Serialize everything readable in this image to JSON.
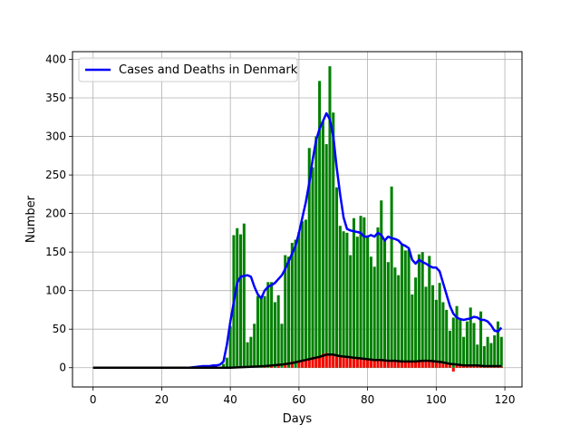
{
  "chart_data": {
    "type": "bar",
    "xlabel": "Days",
    "ylabel": "Number",
    "xlim": [
      -6,
      125
    ],
    "ylim": [
      -25,
      410
    ],
    "xticks": [
      0,
      20,
      40,
      60,
      80,
      100,
      120
    ],
    "yticks": [
      0,
      50,
      100,
      150,
      200,
      250,
      300,
      350,
      400
    ],
    "grid": true,
    "legend": {
      "placement": "top-left",
      "entries": [
        "Cases and Deaths in Denmark"
      ]
    },
    "colors": {
      "cases_bars": "#008000",
      "deaths_bars": "#ff0000",
      "cases_line": "#0000ff",
      "deaths_line": "#000000"
    },
    "series": [
      {
        "name": "Cases and Deaths in Denmark",
        "kind": "line",
        "x": [
          0,
          5,
          10,
          15,
          20,
          25,
          28,
          30,
          32,
          34,
          35,
          36,
          37,
          38,
          39,
          40,
          41,
          42,
          43,
          44,
          45,
          46,
          47,
          48,
          49,
          50,
          51,
          52,
          53,
          54,
          55,
          56,
          57,
          58,
          59,
          60,
          61,
          62,
          63,
          64,
          65,
          66,
          67,
          68,
          69,
          70,
          71,
          72,
          73,
          74,
          75,
          76,
          77,
          78,
          79,
          80,
          81,
          82,
          83,
          84,
          85,
          86,
          87,
          88,
          89,
          90,
          91,
          92,
          93,
          94,
          95,
          96,
          97,
          98,
          99,
          100,
          101,
          102,
          103,
          104,
          105,
          106,
          107,
          108,
          109,
          110,
          111,
          112,
          113,
          114,
          115,
          116,
          117,
          118,
          119
        ],
        "values": [
          0,
          0,
          0,
          0,
          0,
          0,
          0,
          1,
          2,
          2,
          3,
          3,
          4,
          8,
          30,
          60,
          85,
          110,
          118,
          119,
          120,
          118,
          105,
          95,
          90,
          100,
          105,
          107,
          110,
          115,
          120,
          128,
          138,
          148,
          158,
          175,
          195,
          215,
          240,
          270,
          295,
          310,
          320,
          330,
          322,
          300,
          260,
          225,
          195,
          180,
          178,
          177,
          176,
          175,
          170,
          170,
          172,
          170,
          175,
          172,
          165,
          170,
          168,
          167,
          165,
          160,
          158,
          155,
          140,
          135,
          140,
          137,
          135,
          132,
          130,
          130,
          125,
          110,
          95,
          80,
          70,
          65,
          63,
          62,
          63,
          64,
          66,
          65,
          62,
          62,
          60,
          55,
          48,
          47,
          52
        ]
      },
      {
        "name": "",
        "kind": "line",
        "x": [
          0,
          10,
          20,
          30,
          35,
          40,
          45,
          50,
          55,
          58,
          60,
          62,
          64,
          66,
          68,
          70,
          72,
          74,
          76,
          78,
          80,
          82,
          84,
          86,
          88,
          90,
          92,
          94,
          96,
          98,
          100,
          102,
          104,
          106,
          108,
          110,
          112,
          114,
          116,
          118,
          119
        ],
        "values": [
          0,
          0,
          0,
          0,
          0,
          0,
          1,
          2,
          4,
          6,
          8,
          10,
          12,
          14,
          17,
          17,
          15,
          14,
          13,
          12,
          11,
          10,
          10,
          9,
          9,
          8,
          8,
          8,
          9,
          9,
          8,
          7,
          5,
          4,
          3,
          3,
          3,
          2,
          2,
          2,
          2
        ]
      },
      {
        "name": "",
        "kind": "bar",
        "x": [
          38,
          39,
          40,
          41,
          42,
          43,
          44,
          45,
          46,
          47,
          48,
          49,
          50,
          51,
          52,
          53,
          54,
          55,
          56,
          57,
          58,
          59,
          60,
          61,
          62,
          63,
          64,
          65,
          66,
          67,
          68,
          69,
          70,
          71,
          72,
          73,
          74,
          75,
          76,
          77,
          78,
          79,
          80,
          81,
          82,
          83,
          84,
          85,
          86,
          87,
          88,
          89,
          90,
          91,
          92,
          93,
          94,
          95,
          96,
          97,
          98,
          99,
          100,
          101,
          102,
          103,
          104,
          105,
          106,
          107,
          108,
          109,
          110,
          111,
          112,
          113,
          114,
          115,
          116,
          117,
          118,
          119
        ],
        "values": [
          5,
          13,
          54,
          172,
          181,
          173,
          187,
          33,
          40,
          57,
          93,
          91,
          93,
          111,
          111,
          85,
          94,
          57,
          146,
          144,
          162,
          166,
          176,
          190,
          192,
          285,
          260,
          300,
          372,
          320,
          290,
          391,
          331,
          234,
          184,
          177,
          175,
          146,
          194,
          170,
          197,
          195,
          169,
          144,
          131,
          182,
          217,
          165,
          137,
          235,
          130,
          120,
          160,
          152,
          153,
          95,
          117,
          147,
          150,
          105,
          145,
          107,
          88,
          110,
          85,
          75,
          48,
          65,
          80,
          62,
          40,
          60,
          78,
          58,
          30,
          73,
          28,
          40,
          32,
          42,
          60,
          40
        ]
      },
      {
        "name": "",
        "kind": "bar",
        "x": [
          50,
          52,
          54,
          56,
          58,
          60,
          61,
          62,
          63,
          64,
          65,
          66,
          67,
          68,
          69,
          70,
          71,
          72,
          73,
          74,
          75,
          76,
          77,
          78,
          79,
          80,
          81,
          82,
          83,
          84,
          85,
          86,
          87,
          88,
          89,
          90,
          91,
          92,
          93,
          94,
          95,
          96,
          97,
          98,
          99,
          100,
          101,
          102,
          103,
          104,
          105,
          106,
          107,
          108,
          109,
          110,
          111,
          112,
          113,
          114,
          115,
          116,
          117,
          118,
          119
        ],
        "values": [
          2,
          3,
          4,
          6,
          8,
          9,
          10,
          11,
          12,
          14,
          13,
          15,
          18,
          19,
          17,
          16,
          14,
          14,
          13,
          12,
          12,
          11,
          11,
          12,
          10,
          11,
          10,
          9,
          10,
          9,
          9,
          8,
          10,
          9,
          8,
          8,
          9,
          8,
          9,
          9,
          8,
          10,
          9,
          8,
          7,
          7,
          6,
          5,
          5,
          4,
          -5,
          3,
          4,
          3,
          2,
          3,
          2,
          2,
          2,
          2,
          1,
          1,
          1,
          1,
          1
        ]
      }
    ]
  }
}
